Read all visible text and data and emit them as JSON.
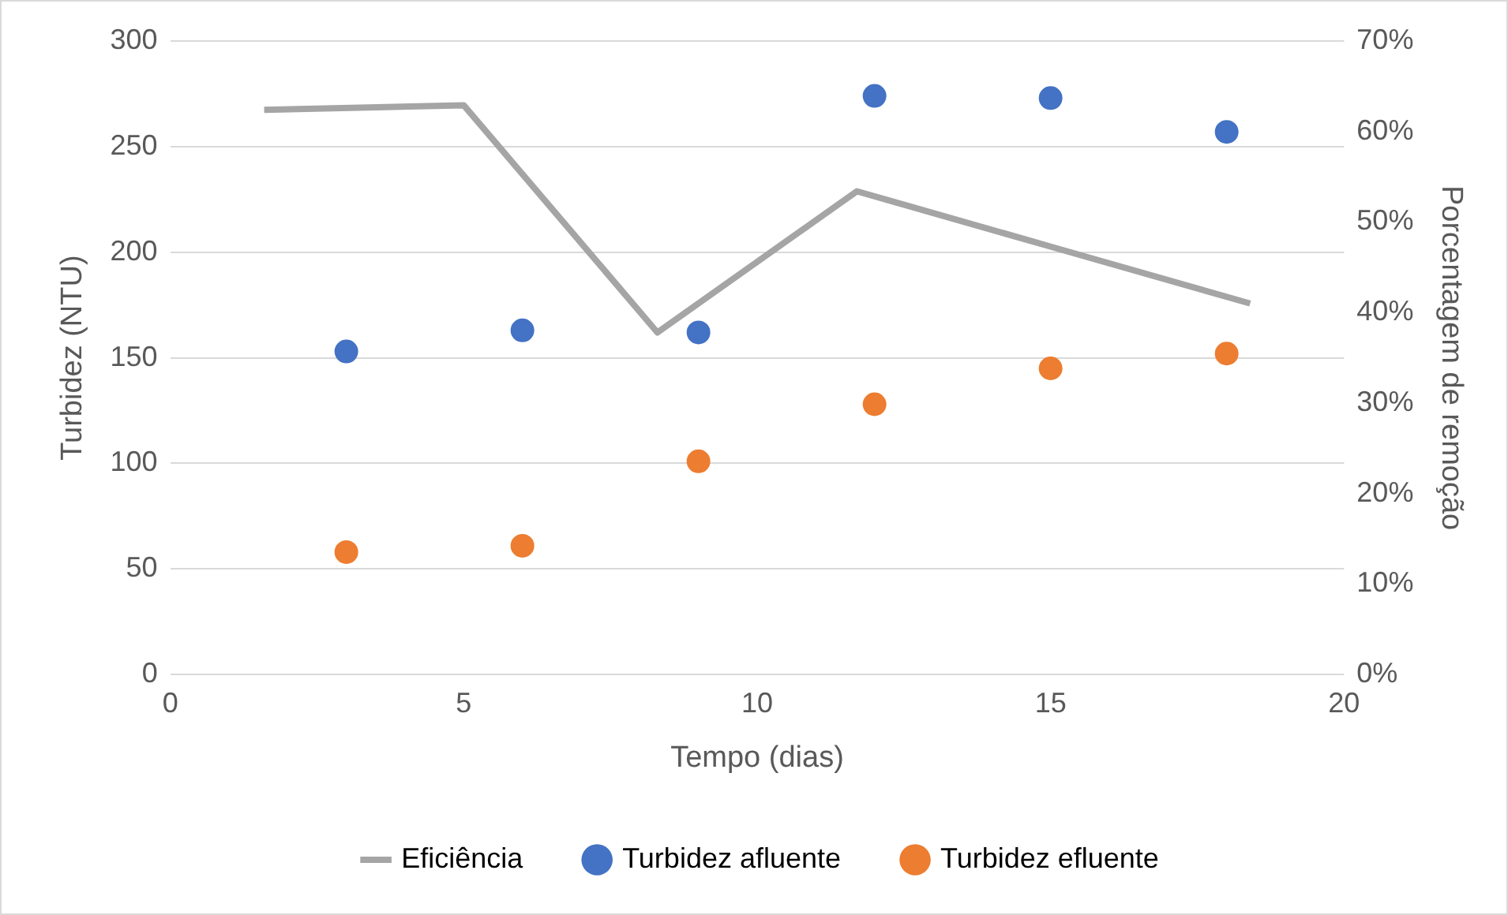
{
  "chart_data": {
    "type": "scatter",
    "xlabel": "Tempo (dias)",
    "ylabel": "Turbidez (NTU)",
    "y2label": "Porcentagem de remoção",
    "xlim": [
      0,
      20
    ],
    "xticks": [
      0,
      5,
      10,
      15,
      20
    ],
    "ylim": [
      0,
      300
    ],
    "yticks": [
      0,
      50,
      100,
      150,
      200,
      250,
      300
    ],
    "y2lim": [
      0,
      70
    ],
    "y2ticks": [
      {
        "value": 0,
        "label": "0%"
      },
      {
        "value": 10,
        "label": "10%"
      },
      {
        "value": 20,
        "label": "20%"
      },
      {
        "value": 30,
        "label": "30%"
      },
      {
        "value": 40,
        "label": "40%"
      },
      {
        "value": 50,
        "label": "50%"
      },
      {
        "value": 60,
        "label": "60%"
      },
      {
        "value": 70,
        "label": "70%"
      }
    ],
    "grid": "y",
    "legend": "bottom",
    "marker": "circle",
    "series": [
      {
        "name": "Eficiência",
        "type": "line",
        "axis": "y2",
        "color": "#a5a5a5",
        "marker": "none",
        "x": [
          1.6,
          5.0,
          8.3,
          11.7,
          15.1,
          18.4
        ],
        "values": [
          62.4,
          62.9,
          37.8,
          53.4,
          47.1,
          41.0
        ]
      },
      {
        "name": "Turbidez afluente",
        "type": "scatter",
        "color": "#4472c4",
        "x": [
          3,
          6,
          9,
          12,
          15,
          18
        ],
        "values": [
          153,
          163,
          162,
          274,
          273,
          257
        ]
      },
      {
        "name": "Turbidez efluente",
        "type": "scatter",
        "color": "#ed7d31",
        "x": [
          3,
          6,
          9,
          12,
          15,
          18
        ],
        "values": [
          58,
          61,
          101,
          128,
          145,
          152
        ]
      }
    ]
  }
}
